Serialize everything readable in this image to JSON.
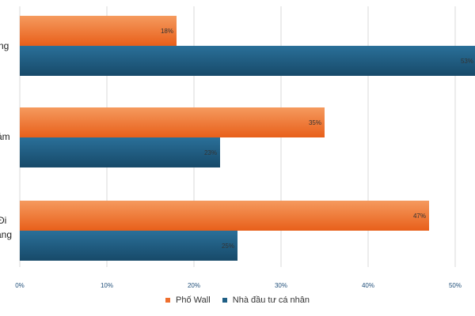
{
  "chart_data": {
    "type": "bar",
    "orientation": "horizontal",
    "categories": [
      "ng",
      "ảm",
      "Đi\nang"
    ],
    "series": [
      {
        "name": "Phố Wall",
        "color": "#ef6f2e",
        "values": [
          18,
          35,
          47
        ]
      },
      {
        "name": "Nhà đầu tư cá nhân",
        "color": "#1f5f85",
        "values": [
          53,
          23,
          25
        ]
      }
    ],
    "data_labels": [
      [
        "18%",
        "53%"
      ],
      [
        "35%",
        "23%"
      ],
      [
        "47%",
        "25%"
      ]
    ],
    "x_ticks": [
      "0%",
      "10%",
      "20%",
      "30%",
      "40%",
      "50%"
    ],
    "xlim": [
      0,
      55
    ],
    "grid": true,
    "legend_position": "bottom"
  }
}
